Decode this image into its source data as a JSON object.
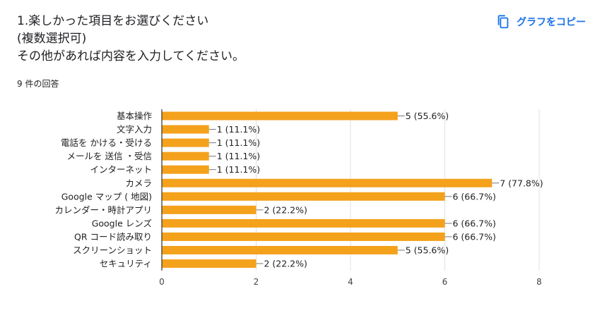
{
  "question": {
    "lines": [
      "1.楽しかった項目をお選びください",
      "(複数選択可)",
      "その他があれば内容を入力してください。"
    ]
  },
  "response_count": "9 件の回答",
  "copy_button": {
    "label": "グラフをコピー",
    "icon": "copy-icon",
    "color": "#1a73e8"
  },
  "chart_data": {
    "type": "bar",
    "orientation": "horizontal",
    "categories": [
      "基本操作",
      "文字入力",
      "電話を かける・受ける",
      "メールを 送信 ・受信",
      "インターネット",
      "カメラ",
      "Google マップ ( 地図)",
      "カレンダー・時計アプリ",
      "Google レンズ",
      "QR コード読み取り",
      "スクリーンショット",
      "セキュリティ"
    ],
    "values": [
      5,
      1,
      1,
      1,
      1,
      7,
      6,
      2,
      6,
      6,
      5,
      2
    ],
    "data_labels": [
      "5 (55.6%)",
      "1 (11.1%)",
      "1 (11.1%)",
      "1 (11.1%)",
      "1 (11.1%)",
      "7 (77.8%)",
      "6 (66.7%)",
      "2 (22.2%)",
      "6 (66.7%)",
      "6 (66.7%)",
      "5 (55.6%)",
      "2 (22.2%)"
    ],
    "xlim": [
      0,
      8
    ],
    "xticks": [
      0,
      2,
      4,
      6,
      8
    ],
    "grid": true,
    "bar_color": "#f4a11c",
    "title": "",
    "xlabel": "",
    "ylabel": ""
  }
}
